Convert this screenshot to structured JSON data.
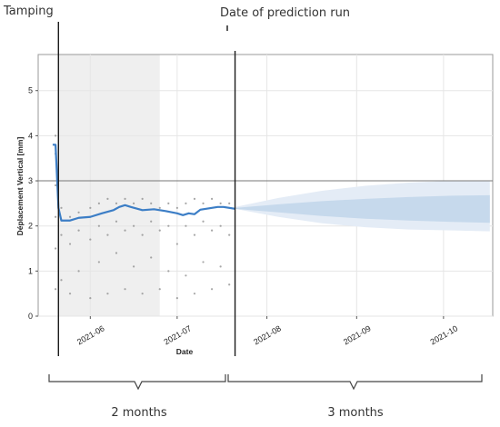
{
  "annotations": {
    "tamping": "Tamping",
    "prediction_run": "Date of prediction run",
    "past_period": "2 months",
    "future_period": "3 months"
  },
  "chart_data": {
    "type": "scatter",
    "xlabel": "Date",
    "ylabel": "Déplacement Vertical [mm]",
    "xlim": [
      "2021-05-14",
      "2021-10-18"
    ],
    "ylim": [
      0,
      5.8
    ],
    "yticks": [
      0,
      1,
      2,
      3,
      4,
      5
    ],
    "xticks": [
      "2021-06",
      "2021-07",
      "2021-08",
      "2021-09",
      "2021-10"
    ],
    "grid": true,
    "threshold": 3,
    "tamping_date": "2021-05-21",
    "prediction_date": "2021-07-21",
    "shaded_period": [
      "2021-05-21",
      "2021-06-25"
    ],
    "series": [
      {
        "kind": "measurement_scatter",
        "color": "#8a8a8a",
        "points": [
          [
            "2021-05-20",
            4.0
          ],
          [
            "2021-05-20",
            3.6
          ],
          [
            "2021-05-20",
            2.9
          ],
          [
            "2021-05-20",
            2.2
          ],
          [
            "2021-05-20",
            1.5
          ],
          [
            "2021-05-20",
            0.6
          ],
          [
            "2021-05-22",
            2.4
          ],
          [
            "2021-05-22",
            1.8
          ],
          [
            "2021-05-22",
            0.8
          ],
          [
            "2021-05-25",
            2.2
          ],
          [
            "2021-05-25",
            1.6
          ],
          [
            "2021-05-25",
            0.5
          ],
          [
            "2021-05-28",
            2.3
          ],
          [
            "2021-05-28",
            1.9
          ],
          [
            "2021-05-28",
            1.0
          ],
          [
            "2021-06-01",
            2.4
          ],
          [
            "2021-06-01",
            1.7
          ],
          [
            "2021-06-01",
            0.4
          ],
          [
            "2021-06-04",
            2.5
          ],
          [
            "2021-06-04",
            2.0
          ],
          [
            "2021-06-04",
            1.2
          ],
          [
            "2021-06-07",
            2.6
          ],
          [
            "2021-06-07",
            1.8
          ],
          [
            "2021-06-07",
            0.5
          ],
          [
            "2021-06-10",
            2.5
          ],
          [
            "2021-06-10",
            2.1
          ],
          [
            "2021-06-10",
            1.4
          ],
          [
            "2021-06-13",
            2.6
          ],
          [
            "2021-06-13",
            1.9
          ],
          [
            "2021-06-13",
            0.6
          ],
          [
            "2021-06-16",
            2.5
          ],
          [
            "2021-06-16",
            2.0
          ],
          [
            "2021-06-16",
            1.1
          ],
          [
            "2021-06-19",
            2.6
          ],
          [
            "2021-06-19",
            1.8
          ],
          [
            "2021-06-19",
            0.5
          ],
          [
            "2021-06-22",
            2.5
          ],
          [
            "2021-06-22",
            2.1
          ],
          [
            "2021-06-22",
            1.3
          ],
          [
            "2021-06-25",
            2.4
          ],
          [
            "2021-06-25",
            1.9
          ],
          [
            "2021-06-25",
            0.6
          ],
          [
            "2021-06-28",
            2.5
          ],
          [
            "2021-06-28",
            2.0
          ],
          [
            "2021-06-28",
            1.0
          ],
          [
            "2021-07-01",
            2.4
          ],
          [
            "2021-07-01",
            1.6
          ],
          [
            "2021-07-01",
            0.4
          ],
          [
            "2021-07-04",
            2.5
          ],
          [
            "2021-07-04",
            2.0
          ],
          [
            "2021-07-04",
            0.9
          ],
          [
            "2021-07-07",
            2.6
          ],
          [
            "2021-07-07",
            1.8
          ],
          [
            "2021-07-07",
            0.5
          ],
          [
            "2021-07-10",
            2.5
          ],
          [
            "2021-07-10",
            2.1
          ],
          [
            "2021-07-10",
            1.2
          ],
          [
            "2021-07-13",
            2.6
          ],
          [
            "2021-07-13",
            1.9
          ],
          [
            "2021-07-13",
            0.6
          ],
          [
            "2021-07-16",
            2.5
          ],
          [
            "2021-07-16",
            2.0
          ],
          [
            "2021-07-16",
            1.1
          ],
          [
            "2021-07-19",
            2.5
          ],
          [
            "2021-07-19",
            1.8
          ],
          [
            "2021-07-19",
            0.7
          ]
        ]
      },
      {
        "kind": "trend_line",
        "color": "#3c7ec6",
        "points": [
          [
            "2021-05-19",
            3.8
          ],
          [
            "2021-05-20",
            3.8
          ],
          [
            "2021-05-21",
            2.4
          ],
          [
            "2021-05-22",
            2.12
          ],
          [
            "2021-05-25",
            2.12
          ],
          [
            "2021-05-28",
            2.18
          ],
          [
            "2021-06-01",
            2.2
          ],
          [
            "2021-06-05",
            2.28
          ],
          [
            "2021-06-09",
            2.35
          ],
          [
            "2021-06-11",
            2.42
          ],
          [
            "2021-06-13",
            2.46
          ],
          [
            "2021-06-15",
            2.42
          ],
          [
            "2021-06-19",
            2.35
          ],
          [
            "2021-06-23",
            2.37
          ],
          [
            "2021-06-27",
            2.33
          ],
          [
            "2021-07-01",
            2.28
          ],
          [
            "2021-07-03",
            2.24
          ],
          [
            "2021-07-05",
            2.28
          ],
          [
            "2021-07-07",
            2.26
          ],
          [
            "2021-07-09",
            2.36
          ],
          [
            "2021-07-11",
            2.38
          ],
          [
            "2021-07-13",
            2.4
          ],
          [
            "2021-07-15",
            2.42
          ],
          [
            "2021-07-17",
            2.42
          ],
          [
            "2021-07-21",
            2.38
          ]
        ]
      },
      {
        "kind": "prediction_band_outer",
        "color": "#e4ecf6",
        "x": [
          "2021-07-21",
          "2021-08-05",
          "2021-08-20",
          "2021-09-04",
          "2021-09-19",
          "2021-10-04",
          "2021-10-17"
        ],
        "upper": [
          2.42,
          2.62,
          2.78,
          2.89,
          2.96,
          3.0,
          3.0
        ],
        "lower": [
          2.38,
          2.2,
          2.06,
          1.97,
          1.92,
          1.9,
          1.88
        ]
      },
      {
        "kind": "prediction_band_inner",
        "color": "#c6d9ec",
        "x": [
          "2021-07-21",
          "2021-08-05",
          "2021-08-20",
          "2021-09-04",
          "2021-09-19",
          "2021-10-04",
          "2021-10-17"
        ],
        "upper": [
          2.4,
          2.48,
          2.55,
          2.6,
          2.64,
          2.67,
          2.68
        ],
        "lower": [
          2.38,
          2.3,
          2.22,
          2.16,
          2.12,
          2.09,
          2.07
        ]
      }
    ]
  }
}
